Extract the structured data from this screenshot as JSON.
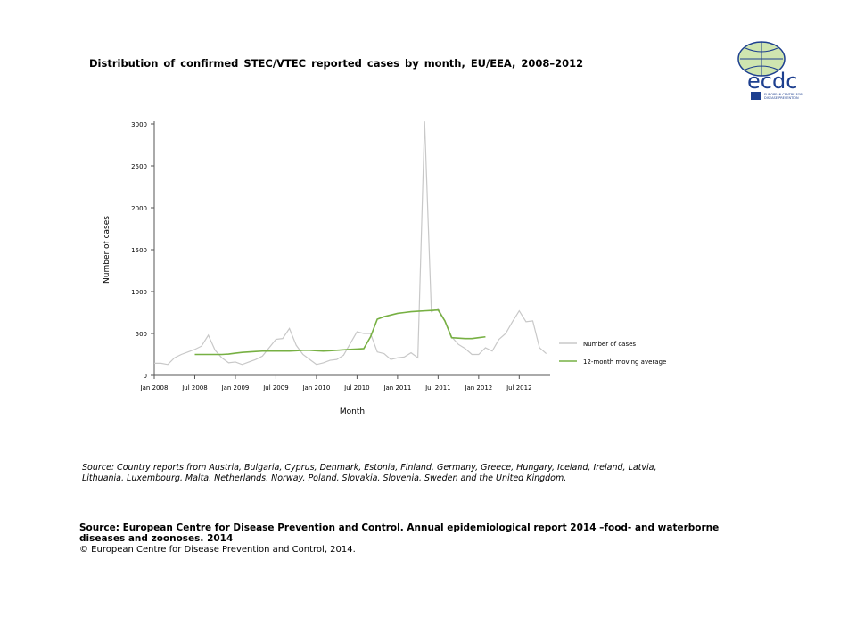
{
  "title": "Distribution of confirmed STEC/VTEC reported cases by month, EU/EEA, 2008–2012",
  "source_note": "Source: Country reports from Austria, Bulgaria, Cyprus, Denmark, Estonia, Finland, Germany, Greece, Hungary, Iceland, Ireland, Latvia, Lithuania, Luxembourg, Malta, Netherlands, Norway, Poland, Slovakia, Slovenia, Sweden and the United Kingdom.",
  "source_main": "Source: European Centre for Disease Prevention and Control. Annual epidemiological report 2014 –food- and waterborne diseases and zoonoses. 2014",
  "copyright": "© European Centre for Disease Prevention and Control, 2014.",
  "logo": {
    "text": "ecdc",
    "subtitle": "EUROPEAN CENTRE FOR DISEASE PREVENTION AND CONTROL"
  },
  "chart_data": {
    "type": "line",
    "xlabel": "Month",
    "ylabel": "Number of cases",
    "ylim": [
      0,
      3000
    ],
    "yticks": [
      0,
      500,
      1000,
      1500,
      2000,
      2500,
      3000
    ],
    "xticks": [
      "Jan 2008",
      "Jul 2008",
      "Jan 2009",
      "Jul 2009",
      "Jan 2010",
      "Jul 2010",
      "Jan 2011",
      "Jul 2011",
      "Jan 2012",
      "Jul 2012"
    ],
    "x_start": "Jan 2008",
    "x_end": "Dec 2012",
    "legend_position": "right",
    "series": [
      {
        "name": "Number of cases",
        "color": "#c8c8c8",
        "start": "Jan 2008",
        "values": [
          145,
          145,
          130,
          210,
          250,
          280,
          310,
          350,
          480,
          300,
          210,
          150,
          160,
          130,
          160,
          190,
          230,
          330,
          430,
          440,
          560,
          360,
          250,
          190,
          130,
          150,
          180,
          190,
          240,
          380,
          520,
          500,
          500,
          280,
          260,
          190,
          210,
          220,
          270,
          210,
          3030,
          760,
          800,
          650,
          460,
          370,
          320,
          250,
          250,
          330,
          290,
          430,
          500,
          640,
          770,
          640,
          650,
          330,
          260
        ]
      },
      {
        "name": "12-month moving average",
        "color": "#77b043",
        "start": "Jul 2008",
        "values": [
          250,
          250,
          250,
          250,
          250,
          255,
          265,
          275,
          280,
          285,
          290,
          290,
          290,
          290,
          290,
          295,
          300,
          300,
          295,
          290,
          295,
          300,
          305,
          310,
          315,
          320,
          460,
          670,
          700,
          720,
          740,
          750,
          760,
          765,
          770,
          775,
          780,
          650,
          450,
          445,
          440,
          440,
          450,
          460
        ]
      }
    ]
  }
}
